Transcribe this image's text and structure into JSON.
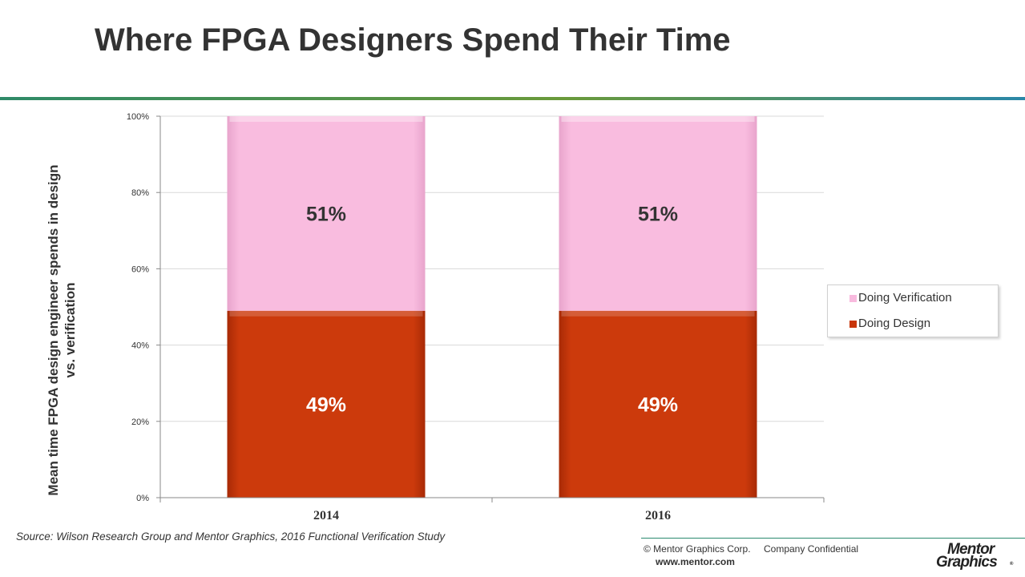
{
  "slide": {
    "title": "Where FPGA Designers Spend Their Time",
    "source": "Source:  Wilson Research Group and Mentor Graphics, 2016 Functional Verification Study",
    "footer": {
      "copyright": "© Mentor Graphics Corp.",
      "confidential": "Company Confidential",
      "website": "www.mentor.com",
      "logo_line1": "Mentor",
      "logo_line2": "Graphics",
      "logo_mark": "®"
    }
  },
  "chart_data": {
    "type": "bar",
    "stacked": true,
    "categories": [
      "2014",
      "2016"
    ],
    "series": [
      {
        "name": "Doing Design",
        "values": [
          49,
          49
        ],
        "labels": [
          "49%",
          "49%"
        ],
        "color": "#c8360a",
        "label_color": "#ffffff"
      },
      {
        "name": "Doing Verification",
        "values": [
          51,
          51
        ],
        "labels": [
          "51%",
          "51%"
        ],
        "color": "#f8bade",
        "label_color": "#333333"
      }
    ],
    "ylabel": "Mean time FPGA design engineer spends in design vs. verification",
    "ylim": [
      0,
      100
    ],
    "yticks": [
      0,
      20,
      40,
      60,
      80,
      100
    ],
    "ytick_labels": [
      "0%",
      "20%",
      "40%",
      "60%",
      "80%",
      "100%"
    ],
    "grid": true,
    "legend": {
      "position": "right",
      "order": [
        "Doing Verification",
        "Doing Design"
      ]
    }
  }
}
